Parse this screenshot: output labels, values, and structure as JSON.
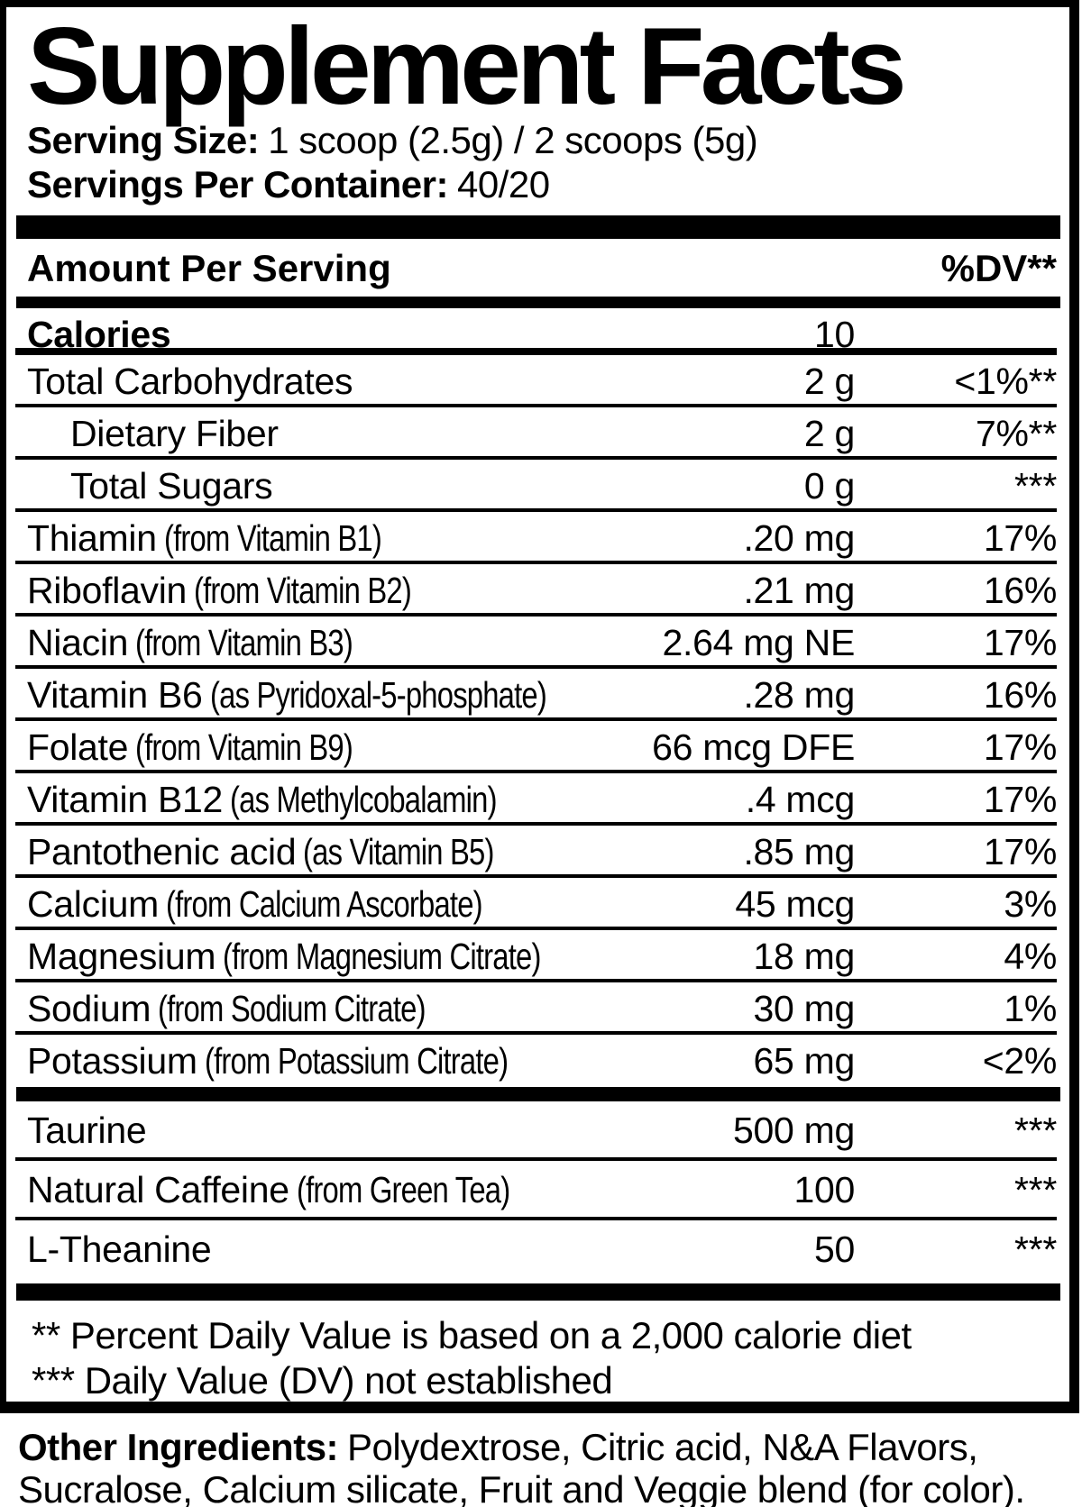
{
  "title": "Supplement Facts",
  "serving": {
    "size_label": "Serving Size:",
    "size_value": "1 scoop (2.5g) / 2 scoops (5g)",
    "container_label": "Servings Per Container:",
    "container_value": "40/20"
  },
  "header": {
    "amount_label": "Amount Per Serving",
    "dv_label": "%DV**"
  },
  "calories": {
    "name": "Calories",
    "amount": "10"
  },
  "nutrients": [
    {
      "name": "Total Carbohydrates",
      "paren": "",
      "amount": "2 g",
      "dv": "<1%**"
    },
    {
      "name": "Dietary Fiber",
      "paren": "",
      "amount": "2 g",
      "dv": "7%**"
    },
    {
      "name": "Total Sugars",
      "paren": "",
      "amount": "0 g",
      "dv": "***"
    },
    {
      "name": "Thiamin",
      "paren": "(from Vitamin B1)",
      "amount": ".20 mg",
      "dv": "17%"
    },
    {
      "name": "Riboflavin",
      "paren": "(from Vitamin B2)",
      "amount": ".21 mg",
      "dv": "16%"
    },
    {
      "name": "Niacin",
      "paren": "(from Vitamin B3)",
      "amount": "2.64 mg NE",
      "dv": "17%"
    },
    {
      "name": "Vitamin B6",
      "paren": "(as Pyridoxal-5-phosphate)",
      "amount": ".28 mg",
      "dv": "16%"
    },
    {
      "name": "Folate",
      "paren": "(from Vitamin B9)",
      "amount": "66 mcg DFE",
      "dv": "17%"
    },
    {
      "name": "Vitamin B12",
      "paren": "(as Methylcobalamin)",
      "amount": ".4 mcg",
      "dv": "17%"
    },
    {
      "name": "Pantothenic acid",
      "paren": "(as Vitamin B5)",
      "amount": ".85 mg",
      "dv": "17%"
    },
    {
      "name": "Calcium",
      "paren": "(from Calcium Ascorbate)",
      "amount": "45 mcg",
      "dv": "3%"
    },
    {
      "name": "Magnesium",
      "paren": "(from Magnesium Citrate)",
      "amount": "18 mg",
      "dv": "4%"
    },
    {
      "name": "Sodium",
      "paren": "(from Sodium Citrate)",
      "amount": "30 mg",
      "dv": "1%"
    },
    {
      "name": "Potassium",
      "paren": "(from Potassium Citrate)",
      "amount": "65 mg",
      "dv": "<2%"
    }
  ],
  "actives": [
    {
      "name": "Taurine",
      "paren": "",
      "amount": "500 mg",
      "dv": "***"
    },
    {
      "name": "Natural Caffeine",
      "paren": "(from Green Tea)",
      "amount": "100",
      "dv": "***"
    },
    {
      "name": "L-Theanine",
      "paren": "",
      "amount": "50",
      "dv": "***"
    }
  ],
  "footnotes": {
    "line1": "** Percent Daily Value is based on a 2,000 calorie diet",
    "line2": "*** Daily Value (DV) not established"
  },
  "other_ingredients": {
    "label": "Other Ingredients:",
    "line1": "Polydextrose, Citric acid, N&A Flavors,",
    "line2": "Sucralose, Calcium silicate, Fruit and Veggie blend (for color)."
  },
  "colors": {
    "ink": "#000000",
    "paper": "#ffffff"
  }
}
